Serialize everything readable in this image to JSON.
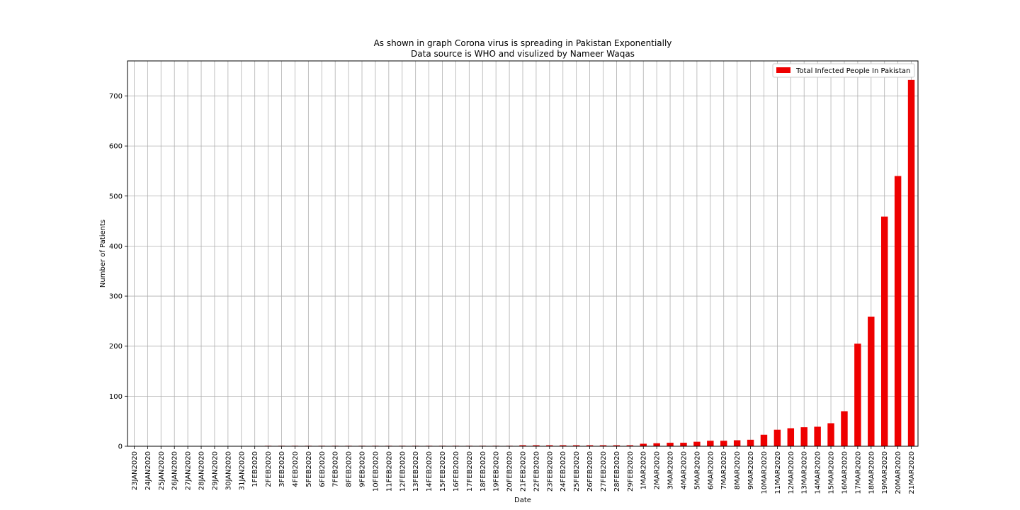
{
  "chart_data": {
    "type": "bar",
    "title": "As shown in graph Corona virus is spreading in Pakistan Exponentially",
    "subtitle": "Data source is WHO and visulized by Nameer Waqas",
    "xlabel": "Date",
    "ylabel": "Number of Patients",
    "ylim": [
      0,
      770
    ],
    "yticks": [
      0,
      100,
      200,
      300,
      400,
      500,
      600,
      700
    ],
    "grid": true,
    "legend_position": "top-right",
    "categories": [
      "23JAN2020",
      "24JAN2020",
      "25JAN2020",
      "26JAN2020",
      "27JAN2020",
      "28JAN2020",
      "29JAN2020",
      "30JAN2020",
      "31JAN2020",
      "1FEB2020",
      "2FEB2020",
      "3FEB2020",
      "4FEB2020",
      "5FEB2020",
      "6FEB2020",
      "7FEB2020",
      "8FEB2020",
      "9FEB2020",
      "10FEB2020",
      "11FEB2020",
      "12FEB2020",
      "13FEB2020",
      "14FEB2020",
      "15FEB2020",
      "16FEB2020",
      "17FEB2020",
      "18FEB2020",
      "19FEB2020",
      "20FEB2020",
      "21FEB2020",
      "22FEB2020",
      "23FEB2020",
      "24FEB2020",
      "25FEB2020",
      "26FEB2020",
      "27FEB2020",
      "28FEB2020",
      "29FEB2020",
      "1MAR2020",
      "2MAR2020",
      "3MAR2020",
      "4MAR2020",
      "5MAR2020",
      "6MAR2020",
      "7MAR2020",
      "8MAR2020",
      "9MAR2020",
      "10MAR2020",
      "11MAR2020",
      "12MAR2020",
      "13MAR2020",
      "14MAR2020",
      "15MAR2020",
      "16MAR2020",
      "17MAR2020",
      "18MAR2020",
      "19MAR2020",
      "20MAR2020",
      "21MAR2020"
    ],
    "series": [
      {
        "name": "Total Infected People In Pakistan",
        "color": "#ee0000",
        "values": [
          0,
          0,
          0,
          0,
          0,
          0,
          0,
          0,
          0,
          0,
          1,
          1,
          1,
          1,
          1,
          1,
          1,
          1,
          1,
          1,
          1,
          1,
          1,
          1,
          1,
          1,
          1,
          1,
          1,
          2,
          2,
          2,
          2,
          2,
          2,
          2,
          2,
          2,
          5,
          6,
          7,
          7,
          9,
          11,
          11,
          12,
          13,
          23,
          33,
          36,
          38,
          39,
          46,
          70,
          205,
          259,
          459,
          540,
          732
        ]
      }
    ]
  },
  "colors": {
    "grid": "#b0b0b0",
    "axis": "#000000",
    "bar": "#ee0000"
  }
}
